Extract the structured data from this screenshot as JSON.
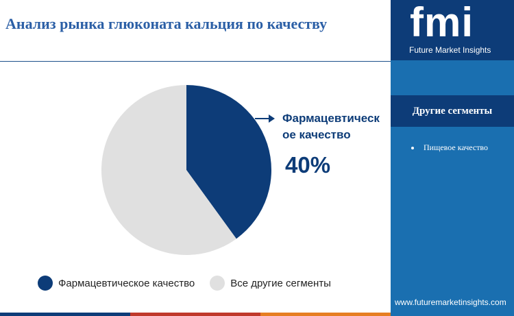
{
  "title": "Анализ рынка глюконата кальция по качеству",
  "chart_data": {
    "type": "pie",
    "categories": [
      "Фармацевтическое качество",
      "Все другие сегменты"
    ],
    "values": [
      40,
      60
    ],
    "colors": [
      "#0d3c78",
      "#e0e0e0"
    ],
    "legend_position": "bottom"
  },
  "callout": {
    "label": "Фармацевтическое качество",
    "value": "40%"
  },
  "legend": [
    {
      "label": "Фармацевтическое качество",
      "color": "#0d3c78"
    },
    {
      "label": "Все другие сегменты",
      "color": "#e0e0e0"
    }
  ],
  "sidebar": {
    "logo": "fmi",
    "logo_subtitle": "Future Market Insights",
    "heading": "Другие сегменты",
    "items": [
      "Пищевое качество"
    ],
    "website": "www.futuremarketinsights.com"
  },
  "accent_colors": [
    "#0d3c78",
    "#1a6fb0",
    "#e0e0e0",
    "#c0392b",
    "#e67e22"
  ]
}
